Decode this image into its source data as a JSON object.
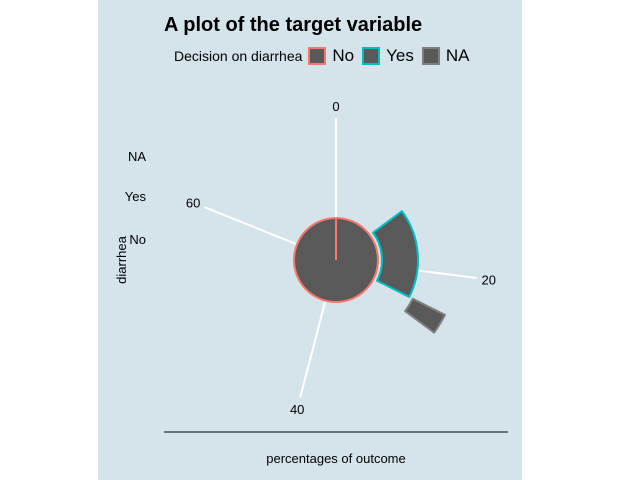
{
  "chart_data": {
    "type": "bar",
    "coordinate_system": "polar",
    "title": "A plot of the target variable",
    "xlabel": "percentages of outcome",
    "ylabel": "diarrhea",
    "categories": [
      "No",
      "Yes",
      "NA"
    ],
    "values": [
      85,
      13,
      2
    ],
    "angle_ticks": [
      "0",
      "20",
      "40",
      "60"
    ],
    "angle_tick_values": [
      0,
      20,
      40,
      60
    ],
    "angle_range": [
      0,
      74
    ],
    "legend": {
      "title": "Decision on diarrhea",
      "position": "top",
      "entries": [
        "No",
        "Yes",
        "NA"
      ]
    },
    "fill_color": "#595959",
    "outline_colors": [
      "#f8766d",
      "#00bfc4",
      "#7f7f7f"
    ],
    "background_color": "#d5e3ea",
    "grid": true
  }
}
